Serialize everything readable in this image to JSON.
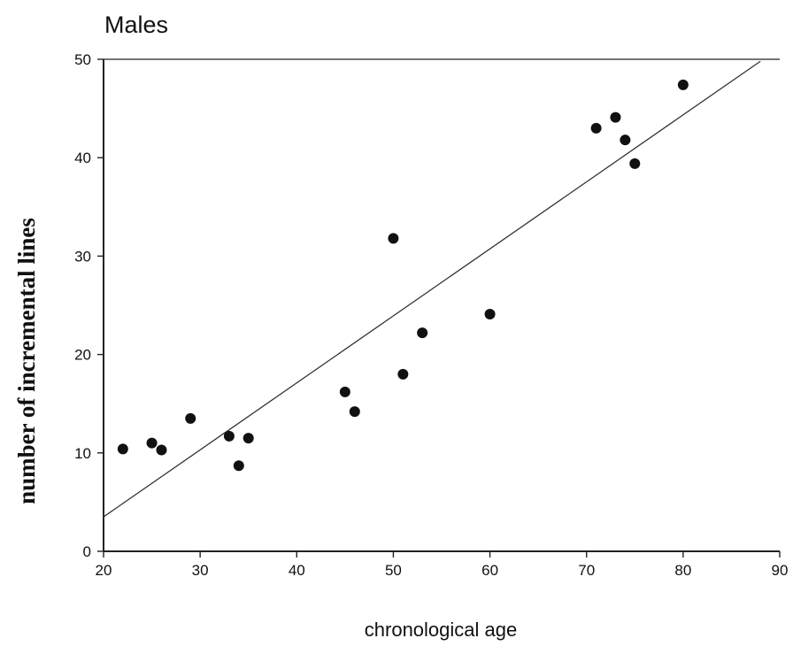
{
  "chart_data": {
    "type": "scatter",
    "title": "Males",
    "xlabel": "chronological age",
    "ylabel": "number of incremental lines",
    "xlim": [
      20,
      90
    ],
    "ylim": [
      0,
      50
    ],
    "x_ticks": [
      "20",
      "30",
      "40",
      "50",
      "60",
      "70",
      "80",
      "90"
    ],
    "y_ticks": [
      "0",
      "10",
      "20",
      "30",
      "40",
      "50"
    ],
    "grid": false,
    "legend": "none",
    "colors": {
      "points": "#111111",
      "line": "#333333",
      "axis": "#222222"
    },
    "points": [
      {
        "x": 22,
        "y": 10.4
      },
      {
        "x": 25,
        "y": 11.0
      },
      {
        "x": 26,
        "y": 10.3
      },
      {
        "x": 29,
        "y": 13.5
      },
      {
        "x": 33,
        "y": 11.7
      },
      {
        "x": 34,
        "y": 8.7
      },
      {
        "x": 35,
        "y": 11.5
      },
      {
        "x": 45,
        "y": 16.2
      },
      {
        "x": 46,
        "y": 14.2
      },
      {
        "x": 50,
        "y": 31.8
      },
      {
        "x": 51,
        "y": 18.0
      },
      {
        "x": 53,
        "y": 22.2
      },
      {
        "x": 60,
        "y": 24.1
      },
      {
        "x": 71,
        "y": 43.0
      },
      {
        "x": 73,
        "y": 44.1
      },
      {
        "x": 74,
        "y": 41.8
      },
      {
        "x": 75,
        "y": 39.4
      },
      {
        "x": 80,
        "y": 47.4
      }
    ],
    "trend_line": {
      "start": {
        "x": 20,
        "y": 3.5
      },
      "end": {
        "x": 88,
        "y": 49.8
      }
    }
  }
}
